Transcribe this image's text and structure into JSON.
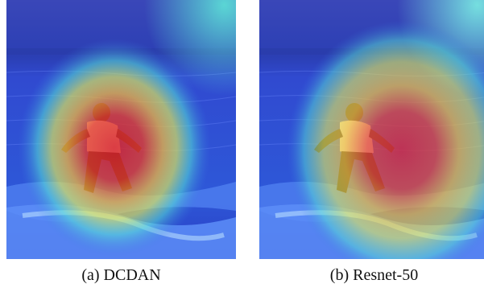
{
  "figure": {
    "panels": [
      {
        "caption": "(a) DCDAN",
        "image": "attention heatmap overlay on surfer riding a wave",
        "heatmap_focus": "surfer body"
      },
      {
        "caption": "(b) Resnet-50",
        "image": "attention heatmap overlay on surfer riding a wave",
        "heatmap_focus": "water right of surfer"
      }
    ],
    "colors": {
      "sky_top": "#2a3fa0",
      "sea": "#2b4fd6",
      "foam": "#8ec7ff",
      "heat_red": "#e5342b",
      "heat_yellow": "#f2e84a",
      "heat_cyan": "#4fe0d8"
    }
  }
}
